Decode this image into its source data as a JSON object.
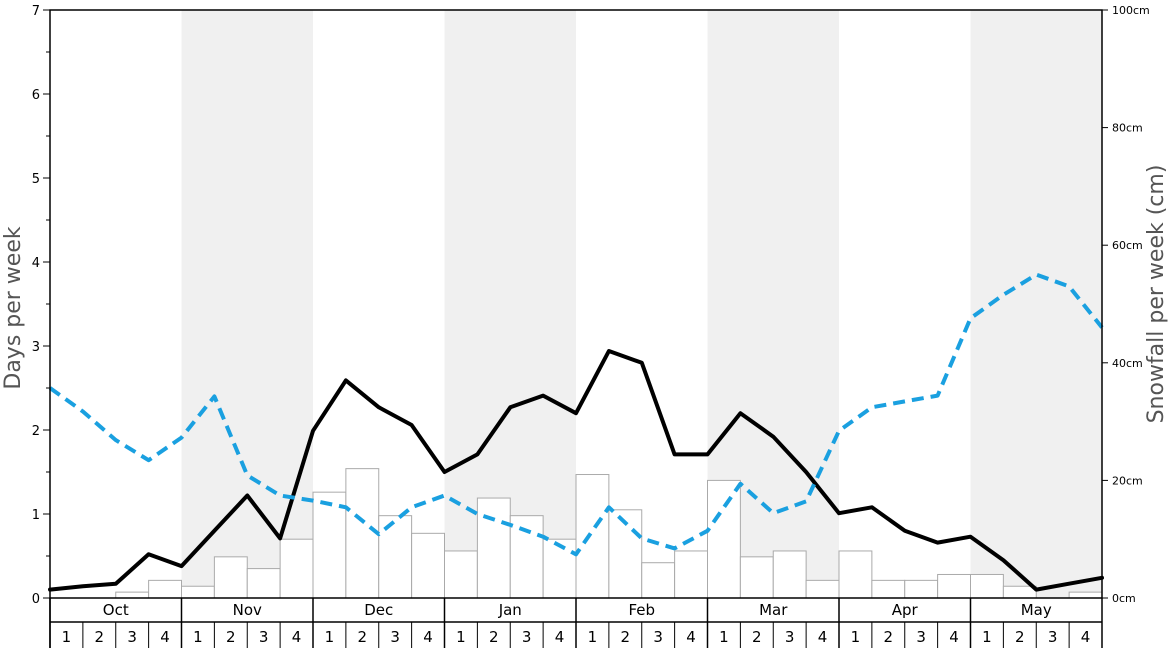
{
  "chart_data": {
    "type": "bar",
    "ylabel_left": "Days per week",
    "ylabel_right": "Snowfall per week (cm)",
    "ylim_left": [
      0,
      7
    ],
    "ylim_right": [
      0,
      100
    ],
    "left_ticks": [
      "0",
      "1",
      "2",
      "3",
      "4",
      "5",
      "6",
      "7"
    ],
    "right_ticks": [
      "0cm",
      "20cm",
      "40cm",
      "60cm",
      "80cm",
      "100cm"
    ],
    "months": [
      "Oct",
      "Nov",
      "Dec",
      "Jan",
      "Feb",
      "Mar",
      "Apr",
      "May"
    ],
    "weeks": [
      "1",
      "2",
      "3",
      "4"
    ],
    "grid": false,
    "alternating_month_shading": true,
    "series": [
      {
        "kind": "bar",
        "axis": "right",
        "color": "#ffffff",
        "stroke": "#aaaaaa",
        "values": [
          0,
          0,
          1,
          3,
          2,
          7,
          5,
          10,
          18,
          22,
          14,
          11,
          8,
          17,
          14,
          10,
          21,
          15,
          6,
          8,
          20,
          7,
          8,
          3,
          8,
          3,
          3,
          4,
          4,
          2,
          0,
          1
        ]
      },
      {
        "kind": "line",
        "axis": "left",
        "color": "#000000",
        "style": "solid",
        "values": [
          0.1,
          0.14,
          0.17,
          0.52,
          0.38,
          0.8,
          1.22,
          0.71,
          1.99,
          2.59,
          2.27,
          2.06,
          1.5,
          1.71,
          2.27,
          2.41,
          2.2,
          2.94,
          2.8,
          1.71,
          1.71,
          2.2,
          1.92,
          1.5,
          1.01,
          1.08,
          0.8,
          0.66,
          0.73,
          0.45,
          0.1,
          0.17,
          0.24
        ]
      },
      {
        "kind": "line",
        "axis": "left",
        "color": "#1aa0e0",
        "style": "dashed",
        "values": [
          2.5,
          2.22,
          1.88,
          1.64,
          1.91,
          2.4,
          1.46,
          1.22,
          1.16,
          1.08,
          0.76,
          1.08,
          1.22,
          1.0,
          0.87,
          0.73,
          0.52,
          1.08,
          0.71,
          0.59,
          0.8,
          1.36,
          1.01,
          1.15,
          1.99,
          2.27,
          2.34,
          2.41,
          3.33,
          3.61,
          3.85,
          3.71,
          3.22
        ]
      }
    ]
  }
}
